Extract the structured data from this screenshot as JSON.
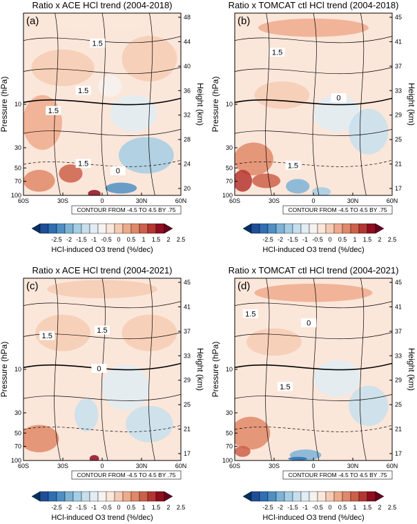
{
  "colorbar": {
    "levels": [
      "-2.5",
      "-2",
      "-1.5",
      "-1",
      "-0.5",
      "0",
      "0.5",
      "1",
      "1.5",
      "2",
      "2.5"
    ],
    "label": "HCl-induced O3 trend (%/dec)",
    "colors": [
      "#053061",
      "#1f4e99",
      "#2f6fb3",
      "#4f8fc3",
      "#7db3d7",
      "#a5cde3",
      "#c7dfec",
      "#e1ecf3",
      "#f5f2ef",
      "#fbe6da",
      "#f6cbb3",
      "#eeaa8c",
      "#e08868",
      "#cc6049",
      "#b53630",
      "#8f0d1f",
      "#67001f"
    ]
  },
  "panels": [
    {
      "id": "a",
      "panel_label": "(a)",
      "title": "Ratio x ACE HCl trend (2004-2018)",
      "contour_note": "CONTOUR FROM -4.5 TO 4.5 BY .75",
      "ylabel_left": "Pressure (hPa)",
      "ylabel_right": "Height (km)",
      "right_ticks": [
        "48",
        "44",
        "40",
        "36",
        "32",
        "28",
        "24",
        "20"
      ],
      "contour_labels": [
        "1.5",
        "1.5",
        "1.5",
        "1.5",
        "0"
      ]
    },
    {
      "id": "b",
      "panel_label": "(b)",
      "title": "Ratio x TOMCAT ctl HCl trend (2004-2018)",
      "contour_note": "CONTOUR FROM -4.5 TO 4.5 BY .75",
      "ylabel_left": "Pressure (hPa)",
      "ylabel_right": "Height (km)",
      "right_ticks": [
        "45",
        "41",
        "37",
        "33",
        "29",
        "25",
        "21",
        "17"
      ],
      "contour_labels": [
        "1.5",
        "0",
        "1.5"
      ]
    },
    {
      "id": "c",
      "panel_label": "(c)",
      "title": "Ratio x ACE HCl trend (2004-2021)",
      "contour_note": "CONTOUR FROM -4.5 TO 4.5 BY .75",
      "ylabel_left": "Pressure (hPa)",
      "ylabel_right": "Height (km)",
      "right_ticks": [
        "45",
        "41",
        "37",
        "33",
        "29",
        "25",
        "21",
        "17"
      ],
      "contour_labels": [
        "1.5",
        "1.5",
        "0"
      ]
    },
    {
      "id": "d",
      "panel_label": "(d)",
      "title": "Ratio x TOMCAT ctl HCl trend (2004-2021)",
      "contour_note": "CONTOUR FROM -4.5 TO 4.5 BY .75",
      "ylabel_left": "Pressure (hPa)",
      "ylabel_right": "Height (km)",
      "right_ticks": [
        "45",
        "41",
        "37",
        "33",
        "29",
        "25",
        "21",
        "17"
      ],
      "contour_labels": [
        "1.5",
        "0",
        "1.5"
      ]
    }
  ],
  "axes": {
    "x_ticks": [
      "60S",
      "30S",
      "0",
      "30N",
      "60N"
    ],
    "y_ticks": [
      "10",
      "30",
      "50",
      "70",
      "100"
    ]
  },
  "chart_data": [
    {
      "type": "heatmap",
      "title": "Ratio x ACE HCl trend (2004-2018)",
      "xlabel": "",
      "ylabel": "Pressure (hPa)",
      "y2label": "Height (km)",
      "x_range": [
        "60S",
        "60N"
      ],
      "y_scale": "log",
      "y_range_hPa": [
        100,
        1
      ],
      "y_ticks": [
        10,
        30,
        50,
        70,
        100
      ],
      "y2_ticks": [
        48,
        44,
        40,
        36,
        32,
        28,
        24,
        20
      ],
      "colorbar_range": [
        -2.5,
        2.5
      ],
      "colorbar_step": 0.5,
      "contour_range": [
        -4.5,
        4.5
      ],
      "contour_step": 0.75,
      "contour_labels": [
        1.5,
        1.5,
        1.5,
        1.5,
        0
      ]
    },
    {
      "type": "heatmap",
      "title": "Ratio x TOMCAT ctl HCl trend (2004-2018)",
      "xlabel": "",
      "ylabel": "Pressure (hPa)",
      "y2label": "Height (km)",
      "x_range": [
        "60S",
        "60N"
      ],
      "y_scale": "log",
      "y_range_hPa": [
        100,
        1
      ],
      "y_ticks": [
        10,
        30,
        50,
        70,
        100
      ],
      "y2_ticks": [
        45,
        41,
        37,
        33,
        29,
        25,
        21,
        17
      ],
      "colorbar_range": [
        -2.5,
        2.5
      ],
      "colorbar_step": 0.5,
      "contour_range": [
        -4.5,
        4.5
      ],
      "contour_step": 0.75,
      "contour_labels": [
        1.5,
        0,
        1.5
      ]
    },
    {
      "type": "heatmap",
      "title": "Ratio x ACE HCl trend (2004-2021)",
      "xlabel": "",
      "ylabel": "Pressure (hPa)",
      "y2label": "Height (km)",
      "x_range": [
        "60S",
        "60N"
      ],
      "y_scale": "log",
      "y_range_hPa": [
        100,
        1
      ],
      "y_ticks": [
        10,
        30,
        50,
        70,
        100
      ],
      "y2_ticks": [
        45,
        41,
        37,
        33,
        29,
        25,
        21,
        17
      ],
      "colorbar_range": [
        -2.5,
        2.5
      ],
      "colorbar_step": 0.5,
      "contour_range": [
        -4.5,
        4.5
      ],
      "contour_step": 0.75,
      "contour_labels": [
        1.5,
        1.5,
        0
      ]
    },
    {
      "type": "heatmap",
      "title": "Ratio x TOMCAT ctl HCl trend (2004-2021)",
      "xlabel": "",
      "ylabel": "Pressure (hPa)",
      "y2label": "Height (km)",
      "x_range": [
        "60S",
        "60N"
      ],
      "y_scale": "log",
      "y_range_hPa": [
        100,
        1
      ],
      "y_ticks": [
        10,
        30,
        50,
        70,
        100
      ],
      "y2_ticks": [
        45,
        41,
        37,
        33,
        29,
        25,
        21,
        17
      ],
      "colorbar_range": [
        -2.5,
        2.5
      ],
      "colorbar_step": 0.5,
      "contour_range": [
        -4.5,
        4.5
      ],
      "contour_step": 0.75,
      "contour_labels": [
        1.5,
        0,
        1.5
      ]
    }
  ]
}
